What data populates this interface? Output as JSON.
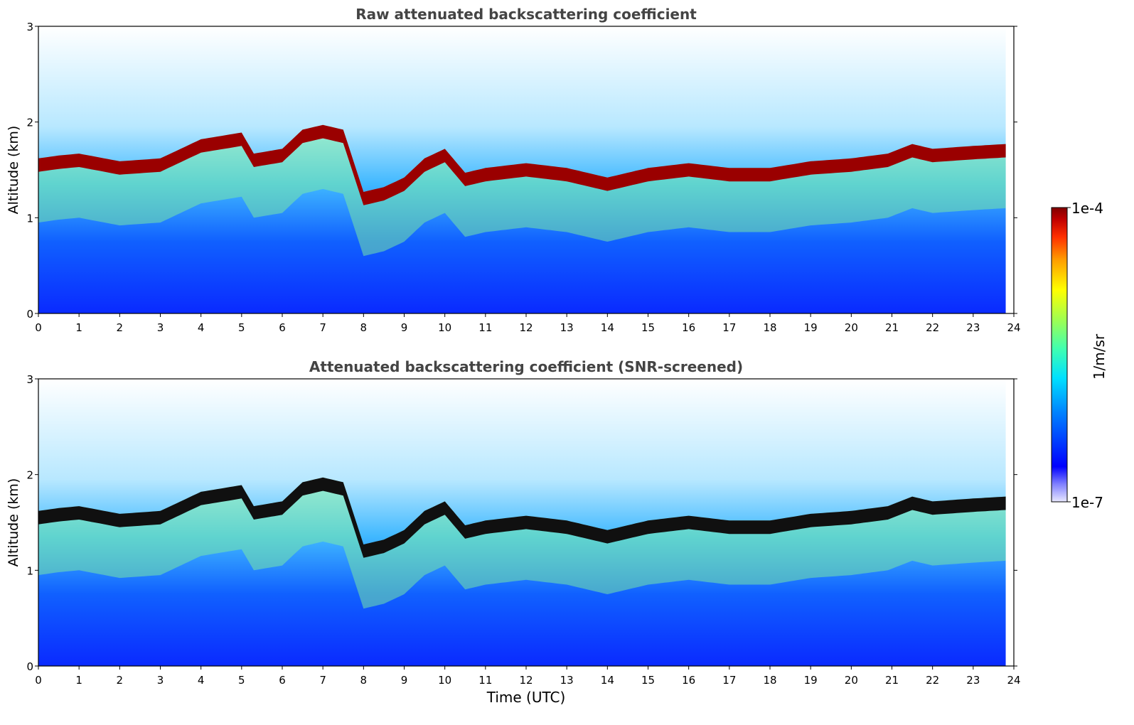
{
  "chart_data": [
    {
      "type": "heatmap",
      "title": "Raw attenuated backscattering coefficient",
      "xlabel": "",
      "ylabel": "Altitude (km)",
      "xlim": [
        0,
        24
      ],
      "ylim": [
        0,
        3
      ],
      "xticks": [
        "0",
        "1",
        "2",
        "3",
        "4",
        "5",
        "6",
        "7",
        "8",
        "9",
        "10",
        "11",
        "12",
        "13",
        "14",
        "15",
        "16",
        "17",
        "18",
        "19",
        "20",
        "21",
        "22",
        "23",
        "24"
      ],
      "yticks": [
        "0",
        "1",
        "2",
        "3"
      ],
      "data_end_hour": 23.8,
      "cloud_layer_base_km": {
        "hours": [
          0,
          0.5,
          1,
          2,
          3,
          4,
          5,
          5.3,
          6,
          6.5,
          7,
          7.5,
          8,
          8.5,
          9,
          9.5,
          10,
          10.5,
          11,
          12,
          13,
          14,
          15,
          16,
          17,
          18,
          19,
          20,
          20.9,
          21.5,
          22,
          23,
          23.8
        ],
        "values": [
          1.55,
          1.58,
          1.6,
          1.52,
          1.55,
          1.75,
          1.82,
          1.6,
          1.65,
          1.85,
          1.9,
          1.85,
          1.2,
          1.25,
          1.35,
          1.55,
          1.65,
          1.4,
          1.45,
          1.5,
          1.45,
          1.35,
          1.45,
          1.5,
          1.45,
          1.45,
          1.52,
          1.55,
          1.6,
          1.7,
          1.65,
          1.68,
          1.7
        ]
      },
      "grid": false
    },
    {
      "type": "heatmap",
      "title": "Attenuated backscattering coefficient (SNR-screened)",
      "xlabel": "Time (UTC)",
      "ylabel": "Altitude (km)",
      "xlim": [
        0,
        24
      ],
      "ylim": [
        0,
        3
      ],
      "xticks": [
        "0",
        "1",
        "2",
        "3",
        "4",
        "5",
        "6",
        "7",
        "8",
        "9",
        "10",
        "11",
        "12",
        "13",
        "14",
        "15",
        "16",
        "17",
        "18",
        "19",
        "20",
        "21",
        "22",
        "23",
        "24"
      ],
      "yticks": [
        "0",
        "1",
        "2",
        "3"
      ],
      "data_end_hour": 23.8,
      "grid": false
    }
  ],
  "colorbar": {
    "label": "1/m/sr",
    "max_label": "1e-4",
    "min_label": "1e-7",
    "colormap": [
      "#0000a8",
      "#0000ff",
      "#0080ff",
      "#00d0ff",
      "#40ffc0",
      "#a0ff60",
      "#ffff00",
      "#ffa000",
      "#ff3000",
      "#c00000",
      "#800000"
    ]
  }
}
